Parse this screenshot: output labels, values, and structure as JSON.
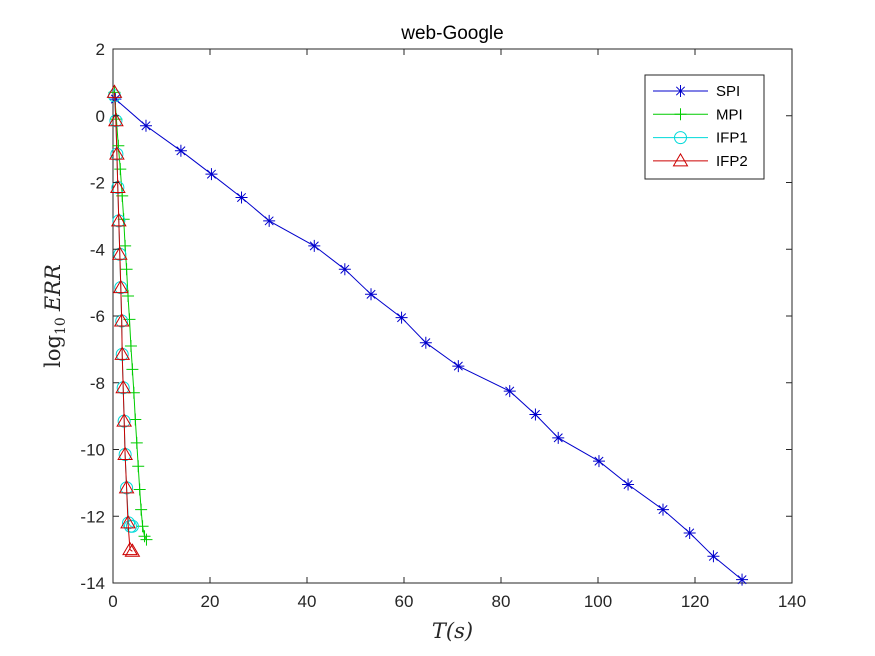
{
  "chart_data": {
    "type": "line",
    "title": "web-Google",
    "xlabel": "T(s)",
    "ylabel_base": "log",
    "ylabel_sub": "10",
    "ylabel_var": "ERR",
    "xlim": [
      0,
      140
    ],
    "ylim": [
      -14,
      2
    ],
    "xticks": [
      0,
      20,
      40,
      60,
      80,
      100,
      120,
      140
    ],
    "yticks": [
      -14,
      -12,
      -10,
      -8,
      -6,
      -4,
      -2,
      0,
      2
    ],
    "grid": false,
    "legend_position": "top-right",
    "series": [
      {
        "name": "SPI",
        "color": "#0000cc",
        "marker": "asterisk",
        "x": [
          0.5,
          6.8,
          14,
          20.3,
          26.5,
          32.2,
          41.5,
          47.8,
          53.2,
          59.5,
          64.5,
          71.2,
          81.8,
          87.1,
          91.8,
          100.2,
          106.2,
          113.4,
          118.9,
          123.8,
          129.7
        ],
        "y": [
          0.5,
          -0.3,
          -1.05,
          -1.75,
          -2.45,
          -3.15,
          -3.9,
          -4.6,
          -5.35,
          -6.05,
          -6.8,
          -7.5,
          -8.25,
          -8.95,
          -9.65,
          -10.35,
          -11.05,
          -11.8,
          -12.5,
          -13.2,
          -13.9
        ]
      },
      {
        "name": "MPI",
        "color": "#00cc00",
        "marker": "plus",
        "x": [
          0.3,
          0.7,
          1.1,
          1.5,
          1.9,
          2.2,
          2.5,
          2.8,
          3.1,
          3.4,
          3.7,
          4.0,
          4.3,
          4.6,
          4.9,
          5.2,
          5.5,
          5.8,
          6.1,
          6.5,
          6.9
        ],
        "y": [
          0.7,
          -0.1,
          -0.9,
          -1.6,
          -2.4,
          -3.1,
          -3.9,
          -4.6,
          -5.4,
          -6.1,
          -6.9,
          -7.6,
          -8.3,
          -9.1,
          -9.8,
          -10.5,
          -11.2,
          -11.8,
          -12.3,
          -12.6,
          -12.7
        ]
      },
      {
        "name": "IFP1",
        "color": "#00d9d9",
        "marker": "circle",
        "x": [
          0.3,
          0.6,
          0.8,
          1.0,
          1.2,
          1.4,
          1.6,
          1.8,
          1.9,
          2.1,
          2.3,
          2.5,
          2.8,
          3.2,
          3.6,
          4.0
        ],
        "y": [
          0.6,
          -0.15,
          -1.15,
          -2.15,
          -3.15,
          -4.15,
          -5.15,
          -6.15,
          -7.15,
          -8.15,
          -9.15,
          -10.15,
          -11.15,
          -12.2,
          -12.3,
          -12.3
        ]
      },
      {
        "name": "IFP2",
        "color": "#cc0000",
        "marker": "triangle",
        "x": [
          0.3,
          0.6,
          0.8,
          1.0,
          1.2,
          1.4,
          1.6,
          1.8,
          1.9,
          2.1,
          2.3,
          2.5,
          2.8,
          3.1,
          3.5,
          4.0
        ],
        "y": [
          0.7,
          -0.15,
          -1.15,
          -2.15,
          -3.15,
          -4.15,
          -5.15,
          -6.15,
          -7.15,
          -8.15,
          -9.15,
          -10.15,
          -11.15,
          -12.2,
          -13.0,
          -13.05
        ]
      }
    ]
  }
}
